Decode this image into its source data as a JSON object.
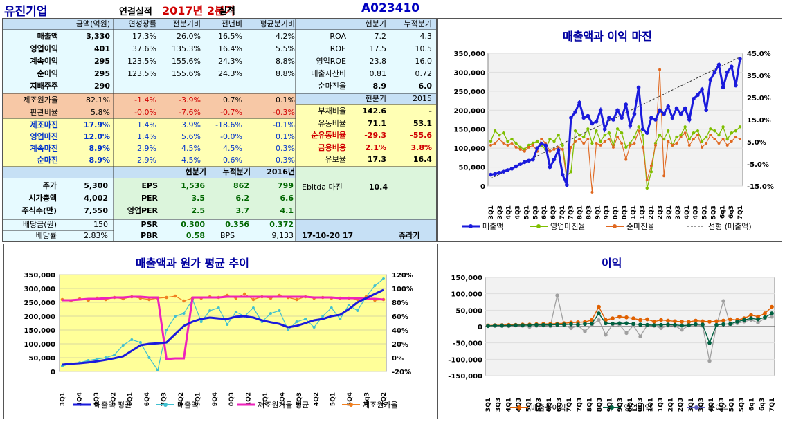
{
  "header": {
    "company": "유진기업",
    "subtitle": "연결실적",
    "period": "2017년 2분기",
    "period_suffix": "실적",
    "code": "A023410"
  },
  "table1": {
    "head": [
      "금액(억원)",
      "연성장률",
      "전분기비",
      "전년비",
      "평균분기비"
    ],
    "rows": [
      {
        "label": "매출액",
        "vals": [
          "3,330",
          "17.3%",
          "26.0%",
          "16.5%",
          "4.2%"
        ]
      },
      {
        "label": "영업이익",
        "vals": [
          "401",
          "37.6%",
          "135.3%",
          "16.4%",
          "5.5%"
        ]
      },
      {
        "label": "계속이익",
        "vals": [
          "295",
          "123.5%",
          "155.6%",
          "24.3%",
          "8.8%"
        ]
      },
      {
        "label": "순이익",
        "vals": [
          "295",
          "123.5%",
          "155.6%",
          "24.3%",
          "8.8%"
        ]
      },
      {
        "label": "지배주주",
        "vals": [
          "290",
          "",
          "",
          "",
          ""
        ]
      }
    ],
    "cost_rows": [
      {
        "label": "제조원가율",
        "vals": [
          "82.1%",
          "-1.4%",
          "-3.9%",
          "0.7%",
          "0.1%"
        ]
      },
      {
        "label": "판관비율",
        "vals": [
          "5.8%",
          "-0.0%",
          "-7.6%",
          "-0.7%",
          "-0.3%"
        ]
      }
    ],
    "margin_rows": [
      {
        "label": "제조마진",
        "vals": [
          "17.9%",
          "1.4%",
          "3.9%",
          "-18.6%",
          "-0.1%"
        ]
      },
      {
        "label": "영업마진",
        "vals": [
          "12.0%",
          "1.4%",
          "5.6%",
          "-0.0%",
          "0.1%"
        ]
      },
      {
        "label": "계속마진",
        "vals": [
          "8.9%",
          "2.9%",
          "4.5%",
          "4.5%",
          "0.3%"
        ]
      },
      {
        "label": "순마진",
        "vals": [
          "8.9%",
          "2.9%",
          "4.5%",
          "0.6%",
          "0.3%"
        ]
      }
    ]
  },
  "ratios": {
    "head": [
      "현분기",
      "누적분기"
    ],
    "rows": [
      {
        "label": "ROA",
        "vals": [
          "7.2",
          "4.3"
        ]
      },
      {
        "label": "ROE",
        "vals": [
          "17.5",
          "10.5"
        ]
      },
      {
        "label": "영업ROE",
        "vals": [
          "23.8",
          "16.0"
        ]
      },
      {
        "label": "매출자산비",
        "vals": [
          "0.81",
          "0.72"
        ]
      },
      {
        "label": "순마진율",
        "vals": [
          "8.9",
          "6.0"
        ]
      }
    ],
    "head2": [
      "현분기",
      "2015"
    ],
    "rows2": [
      {
        "label": "부채비율",
        "vals": [
          "142.6",
          "-"
        ]
      },
      {
        "label": "유동비율",
        "vals": [
          "71.1",
          "53.1"
        ]
      },
      {
        "label": "순유동비율",
        "vals": [
          "-29.3",
          "-55.6"
        ]
      },
      {
        "label": "금융비용",
        "vals": [
          "2.1%",
          "3.8%"
        ]
      },
      {
        "label": "유보율",
        "vals": [
          "17.3",
          "16.4"
        ]
      }
    ]
  },
  "valuation": {
    "head": [
      "현분기",
      "누적분기",
      "2016년"
    ],
    "left": [
      {
        "label": "주가",
        "val": "5,300"
      },
      {
        "label": "시가총액",
        "val": "4,002"
      },
      {
        "label": "주식수(만)",
        "val": "7,550"
      },
      {
        "label": "배당금(원)",
        "val": "150"
      },
      {
        "label": "배당률",
        "val": "2.83%"
      }
    ],
    "mid": [
      {
        "label": "EPS",
        "vals": [
          "1,536",
          "862",
          "799"
        ]
      },
      {
        "label": "PER",
        "vals": [
          "3.5",
          "6.2",
          "6.6"
        ]
      },
      {
        "label": "영업PER",
        "vals": [
          "2.5",
          "3.7",
          "4.1"
        ]
      },
      {
        "label": "PSR",
        "vals": [
          "0.300",
          "0.356",
          "0.372"
        ]
      },
      {
        "label": "PBR",
        "vals": [
          "0.58"
        ]
      }
    ],
    "bps_label": "BPS",
    "bps_val": "9,133",
    "ebitda_label": "Ebitda 마진",
    "ebitda_val": "10.4",
    "date": "17-10-20 17",
    "author": "쥬라기"
  },
  "colors": {
    "blue_bg": "#c6e0f5",
    "cyan_bg": "#e6faff",
    "orange_bg": "#f7c8a6",
    "yellow_bg": "#ffffb4",
    "green_bg": "#dcf5dc",
    "plot_yellow": "#ffff99",
    "plot_gray": "#f2f2f2"
  },
  "chart_data": [
    {
      "type": "line",
      "title": "매출액과 이익 마진",
      "x_ticks": [
        "3Q1",
        "3Q3",
        "4Q1",
        "4Q3",
        "5Q1",
        "5Q3",
        "6Q1",
        "6Q3",
        "7Q1",
        "7Q3",
        "8Q1",
        "8Q3",
        "9Q1",
        "9Q3",
        "0Q1",
        "0Q3",
        "1Q1",
        "1Q3",
        "2Q1",
        "2Q3",
        "3Q1",
        "3Q3",
        "4Q1",
        "4Q3",
        "5Q1",
        "5Q3",
        "6q1",
        "6q3",
        "7Q1"
      ],
      "y_left": {
        "min": 0,
        "max": 350000,
        "ticks": [
          "0",
          "50,000",
          "100,000",
          "150,000",
          "200,000",
          "250,000",
          "300,000",
          "350,000"
        ]
      },
      "y_right": {
        "min": -15,
        "max": 50,
        "ticks": [
          "-15.0%",
          "-5.0%",
          "5.0%",
          "15.0%",
          "25.0%",
          "35.0%",
          "45.0%"
        ]
      },
      "series": [
        {
          "name": "매출액",
          "color": "#1a1adc",
          "axis": "left",
          "values": [
            30000,
            32000,
            35000,
            38000,
            42000,
            46000,
            52000,
            58000,
            63000,
            67000,
            70000,
            100000,
            112000,
            107000,
            50000,
            70000,
            95000,
            30000,
            3000,
            180000,
            195000,
            220000,
            180000,
            185000,
            165000,
            170000,
            200000,
            150000,
            180000,
            175000,
            200000,
            180000,
            215000,
            160000,
            190000,
            260000,
            150000,
            140000,
            180000,
            175000,
            200000,
            190000,
            210000,
            180000,
            205000,
            190000,
            205000,
            175000,
            230000,
            240000,
            255000,
            200000,
            280000,
            300000,
            320000,
            260000,
            300000,
            315000,
            265000,
            335000
          ]
        },
        {
          "name": "영업마진율",
          "color": "#7fbf00",
          "axis": "right",
          "values": [
            7,
            12,
            10,
            11,
            7,
            8,
            6,
            4,
            3,
            5,
            6,
            7,
            5,
            3,
            8,
            7,
            10,
            5,
            -10,
            -8,
            12,
            10,
            9,
            13,
            6,
            12,
            7,
            10,
            11,
            5,
            13,
            11,
            4,
            6,
            9,
            14,
            10,
            -16,
            -8,
            6,
            10,
            8,
            12,
            5,
            9,
            10,
            14,
            8,
            11,
            12,
            7,
            9,
            13,
            12,
            10,
            14,
            8,
            11,
            12,
            14
          ]
        },
        {
          "name": "순마진율",
          "color": "#e06820",
          "axis": "right",
          "values": [
            5,
            6,
            8,
            6,
            5,
            6,
            4,
            3,
            2,
            4,
            5,
            2,
            8,
            6,
            2,
            3,
            4,
            3,
            -12,
            4,
            7,
            8,
            6,
            8,
            -20,
            6,
            5,
            7,
            8,
            4,
            9,
            6,
            -2,
            5,
            6,
            12,
            4,
            -12,
            -5,
            5,
            42,
            -10,
            7,
            5,
            6,
            9,
            11,
            5,
            8,
            10,
            4,
            6,
            10,
            8,
            6,
            8,
            5,
            7,
            9,
            8
          ]
        },
        {
          "name": "선형 (매출액)",
          "color": "#333333",
          "axis": "left",
          "dashed": true,
          "values": [
            20000,
            340000
          ]
        }
      ],
      "legend_position": "bottom"
    },
    {
      "type": "line",
      "title": "매출액과 원가 평균 추이",
      "x_ticks": [
        "3Q1",
        "3Q4",
        "4Q3",
        "5Q2",
        "6Q1",
        "6Q4",
        "7Q3",
        "8Q2",
        "9Q1",
        "9Q4",
        "0Q3",
        "1Q2",
        "2Q1",
        "2Q4",
        "3Q3",
        "4Q2",
        "5Q1",
        "5Q4",
        "6q3",
        "7Q2"
      ],
      "y_left": {
        "min": 0,
        "max": 350000,
        "ticks": [
          "0",
          "50,000",
          "100,000",
          "150,000",
          "200,000",
          "250,000",
          "300,000",
          "350,000"
        ]
      },
      "y_right": {
        "min": -20,
        "max": 120,
        "ticks": [
          "-20%",
          "0%",
          "20%",
          "40%",
          "60%",
          "80%",
          "100%",
          "120%"
        ]
      },
      "series": [
        {
          "name": "매출액 평균",
          "color": "#1a1adc",
          "axis": "left",
          "values": [
            25000,
            28000,
            30000,
            33000,
            37000,
            42000,
            48000,
            55000,
            75000,
            95000,
            100000,
            102000,
            105000,
            135000,
            165000,
            180000,
            190000,
            195000,
            192000,
            190000,
            198000,
            200000,
            195000,
            185000,
            178000,
            172000,
            160000,
            165000,
            175000,
            185000,
            190000,
            200000,
            205000,
            225000,
            250000,
            265000,
            280000,
            295000
          ]
        },
        {
          "name": "매출액",
          "color": "#40c0d0",
          "axis": "left",
          "values": [
            20000,
            28000,
            32000,
            40000,
            45000,
            50000,
            60000,
            95000,
            115000,
            105000,
            50000,
            5000,
            150000,
            200000,
            210000,
            260000,
            180000,
            220000,
            230000,
            170000,
            215000,
            200000,
            230000,
            180000,
            210000,
            220000,
            150000,
            180000,
            190000,
            160000,
            200000,
            230000,
            190000,
            240000,
            220000,
            270000,
            310000,
            335000
          ]
        },
        {
          "name": "제조원가율 평균",
          "color": "#ee22bb",
          "axis": "right",
          "values": [
            83,
            83,
            84,
            85,
            85,
            86,
            87,
            87,
            88,
            88,
            87,
            87,
            -2,
            -1,
            -1,
            87,
            87,
            87,
            87,
            88,
            88,
            88,
            88,
            88,
            88,
            88,
            88,
            88,
            88,
            87,
            87,
            87,
            86,
            86,
            86,
            85,
            85,
            84
          ]
        },
        {
          "name": "제조원가율",
          "color": "#f08020",
          "axis": "right",
          "values": [
            84,
            82,
            85,
            83,
            86,
            84,
            87,
            85,
            88,
            86,
            84,
            86,
            87,
            89,
            82,
            86,
            86,
            88,
            87,
            90,
            86,
            92,
            84,
            88,
            86,
            90,
            87,
            84,
            88,
            86,
            87,
            86,
            86,
            86,
            84,
            88,
            83,
            84
          ]
        }
      ],
      "legend_position": "bottom"
    },
    {
      "type": "line",
      "title": "이익",
      "x_ticks": [
        "3Q1",
        "3Q3",
        "4Q1",
        "4Q3",
        "5Q1",
        "5Q3",
        "6Q1",
        "6Q3",
        "7Q1",
        "7Q3",
        "8Q1",
        "8Q3",
        "9Q1",
        "9Q3",
        "0Q1",
        "0Q3",
        "1Q1",
        "1Q3",
        "2Q1",
        "2Q3",
        "3Q1",
        "3Q3",
        "4Q1",
        "4Q3",
        "5Q1",
        "5Q3",
        "6q1",
        "6q3",
        "7Q1"
      ],
      "y": {
        "min": -150000,
        "max": 150000,
        "ticks": [
          "-150,000",
          "-100,000",
          "-50,000",
          "0",
          "50,000",
          "100,000",
          "150,000"
        ]
      },
      "series": [
        {
          "name": "매출총이익",
          "color": "#e06000",
          "values": [
            3000,
            4000,
            4000,
            5000,
            5000,
            6000,
            6000,
            7000,
            8000,
            8000,
            9000,
            10000,
            12000,
            13000,
            14000,
            20000,
            60000,
            20000,
            25000,
            30000,
            28000,
            25000,
            20000,
            22000,
            15000,
            20000,
            18000,
            16000,
            15000,
            14000,
            18000,
            16000,
            15000,
            16000,
            18000,
            22000,
            20000,
            25000,
            35000,
            30000,
            40000,
            60000
          ]
        },
        {
          "name": "영업이익",
          "color": "#006040",
          "values": [
            2000,
            3000,
            3000,
            3000,
            4000,
            4000,
            4000,
            5000,
            5000,
            5000,
            6000,
            6000,
            7000,
            6000,
            8000,
            9000,
            40000,
            10000,
            9000,
            10000,
            10000,
            8000,
            6000,
            5000,
            4000,
            5000,
            6000,
            5000,
            3000,
            4000,
            7000,
            6000,
            -50000,
            5000,
            7000,
            8000,
            15000,
            20000,
            25000,
            22000,
            28000,
            40000
          ]
        },
        {
          "name": "순이익",
          "color": "#6060c0",
          "values": [
            1000,
            2000,
            2000,
            1000,
            3000,
            2000,
            -1000,
            2000,
            3000,
            1000,
            95000,
            4000,
            -5000,
            3000,
            -15000,
            5000,
            20000,
            -25000,
            6000,
            5000,
            -20000,
            3000,
            -30000,
            4000,
            2000,
            -5000,
            3000,
            2000,
            -10000,
            3000,
            5000,
            2000,
            -105000,
            3000,
            78000,
            4000,
            10000,
            15000,
            20000,
            12000,
            25000,
            30000
          ]
        }
      ],
      "legend_position": "bottom"
    }
  ]
}
